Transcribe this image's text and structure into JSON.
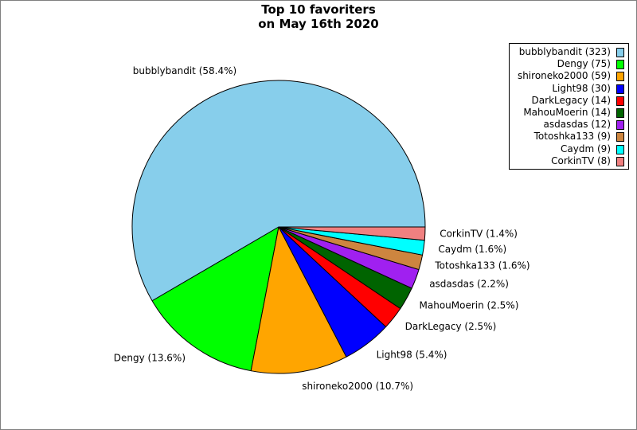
{
  "title_lines": [
    "Top 10 favoriters",
    "on May 16th 2020"
  ],
  "chart_data": {
    "type": "pie",
    "title": "Top 10 favoriters on May 16th 2020",
    "slices": [
      {
        "name": "bubblybandit",
        "value": 323,
        "percent_label": "bubblybandit (58.4%)",
        "legend_label": "bubblybandit (323)",
        "color": "#87ceeb"
      },
      {
        "name": "Dengy",
        "value": 75,
        "percent_label": "Dengy (13.6%)",
        "legend_label": "Dengy (75)",
        "color": "#00ff00"
      },
      {
        "name": "shironeko2000",
        "value": 59,
        "percent_label": "shironeko2000 (10.7%)",
        "legend_label": "shironeko2000 (59)",
        "color": "#ffa500"
      },
      {
        "name": "Light98",
        "value": 30,
        "percent_label": "Light98 (5.4%)",
        "legend_label": "Light98 (30)",
        "color": "#0000ff"
      },
      {
        "name": "DarkLegacy",
        "value": 14,
        "percent_label": "DarkLegacy (2.5%)",
        "legend_label": "DarkLegacy (14)",
        "color": "#ff0000"
      },
      {
        "name": "MahouMoerin",
        "value": 14,
        "percent_label": "MahouMoerin (2.5%)",
        "legend_label": "MahouMoerin (14)",
        "color": "#006400"
      },
      {
        "name": "asdasdas",
        "value": 12,
        "percent_label": "asdasdas (2.2%)",
        "legend_label": "asdasdas (12)",
        "color": "#a020f0"
      },
      {
        "name": "Totoshka133",
        "value": 9,
        "percent_label": "Totoshka133 (1.6%)",
        "legend_label": "Totoshka133 (9)",
        "color": "#cd853f"
      },
      {
        "name": "Caydm",
        "value": 9,
        "percent_label": "Caydm (1.6%)",
        "legend_label": "Caydm (9)",
        "color": "#00ffff"
      },
      {
        "name": "CorkinTV",
        "value": 8,
        "percent_label": "CorkinTV (1.4%)",
        "legend_label": "CorkinTV (8)",
        "color": "#f08080"
      }
    ],
    "start_angle_deg": 0,
    "direction": "counterclockwise",
    "legend_position": "top-right"
  }
}
